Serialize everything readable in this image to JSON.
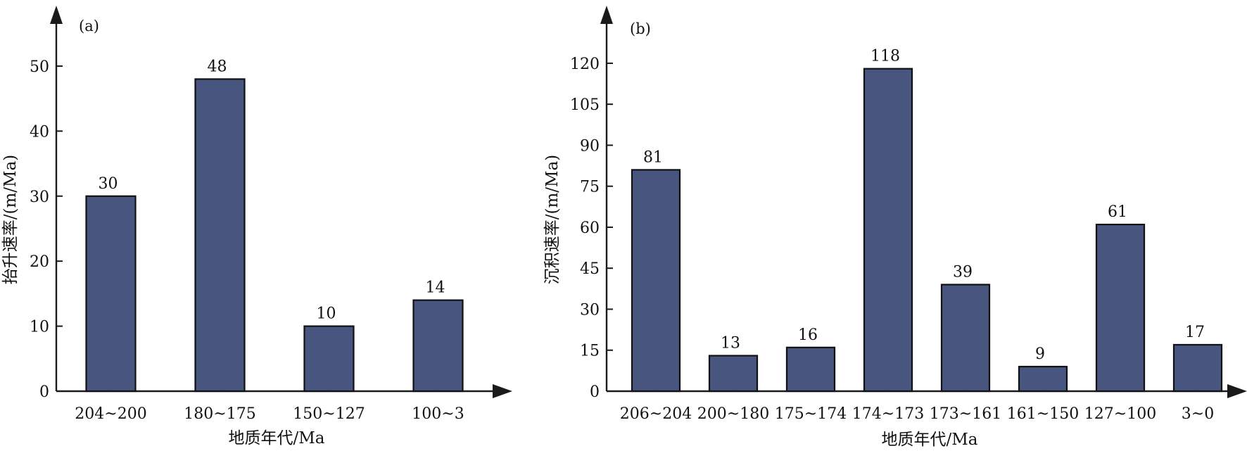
{
  "chart_data": [
    {
      "type": "bar",
      "panel_label": "(a)",
      "categories": [
        "204~200",
        "180~175",
        "150~127",
        "100~3"
      ],
      "values": [
        30,
        48,
        10,
        14
      ],
      "data_labels": [
        "30",
        "48",
        "10",
        "14"
      ],
      "xlabel": "地质年代/Ma",
      "ylabel": "抬升速率/(m/Ma)",
      "yticks": [
        0,
        10,
        20,
        30,
        40,
        50
      ],
      "ylim": [
        0,
        58
      ],
      "grid": false,
      "bar_color": "#47557f"
    },
    {
      "type": "bar",
      "panel_label": "(b)",
      "categories": [
        "206~204",
        "200~180",
        "175~174",
        "174~173",
        "173~161",
        "161~150",
        "127~100",
        "3~0"
      ],
      "values": [
        81,
        13,
        16,
        118,
        39,
        9,
        61,
        17
      ],
      "data_labels": [
        "81",
        "13",
        "16",
        "118",
        "39",
        "9",
        "61",
        "17"
      ],
      "xlabel": "地质年代/Ma",
      "ylabel": "沉积速率/(m/Ma)",
      "yticks": [
        0,
        15,
        30,
        45,
        60,
        75,
        90,
        105,
        120
      ],
      "ylim": [
        0,
        138
      ],
      "grid": false,
      "bar_color": "#47557f"
    }
  ]
}
